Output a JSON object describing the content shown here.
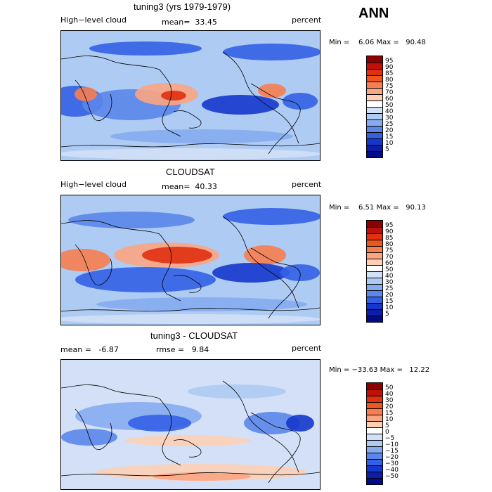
{
  "season": "ANN",
  "panels": [
    {
      "title": "tuning3 (yrs 1979-1979)",
      "left_label": "High−level cloud",
      "center_label": "mean=  33.45",
      "right_label": "percent",
      "minmax": "Min =    6.06 Max =   90.48",
      "colorbar": {
        "labels": [
          "95",
          "90",
          "85",
          "80",
          "75",
          "70",
          "60",
          "50",
          "40",
          "30",
          "25",
          "20",
          "15",
          "10",
          "5"
        ],
        "colors": [
          "#8b0000",
          "#c1100a",
          "#e03010",
          "#f0551e",
          "#f77e50",
          "#fba583",
          "#fdd0b6",
          "#ffffff",
          "#d3e0f7",
          "#aecbf3",
          "#86acef",
          "#5b86ea",
          "#3460e6",
          "#1637cc",
          "#0a1ea8",
          "#000a8a"
        ]
      }
    },
    {
      "title": "CLOUDSAT",
      "left_label": "High−level cloud",
      "center_label": "mean=  40.33",
      "right_label": "percent",
      "minmax": "Min =    6.51 Max =   90.13",
      "colorbar": {
        "labels": [
          "95",
          "90",
          "85",
          "80",
          "75",
          "70",
          "60",
          "50",
          "40",
          "30",
          "25",
          "20",
          "15",
          "10",
          "5"
        ],
        "colors": [
          "#8b0000",
          "#c1100a",
          "#e03010",
          "#f0551e",
          "#f77e50",
          "#fba583",
          "#fdd0b6",
          "#ffffff",
          "#d3e0f7",
          "#aecbf3",
          "#86acef",
          "#5b86ea",
          "#3460e6",
          "#1637cc",
          "#0a1ea8",
          "#000a8a"
        ]
      }
    },
    {
      "title": "tuning3 - CLOUDSAT",
      "left_label": "mean =   -6.87",
      "center_label": "rmse =   9.84",
      "right_label": "percent",
      "minmax": "Min = −33.63 Max =   12.22",
      "colorbar": {
        "labels": [
          "50",
          "40",
          "30",
          "20",
          "15",
          "10",
          "5",
          "0",
          "−5",
          "−10",
          "−15",
          "−20",
          "−30",
          "−40",
          "−50"
        ],
        "colors": [
          "#8b0000",
          "#c1100a",
          "#e03010",
          "#f0551e",
          "#f77e50",
          "#fba583",
          "#fdd0b6",
          "#ffffff",
          "#d3e0f7",
          "#aecbf3",
          "#86acef",
          "#5b86ea",
          "#3460e6",
          "#1637cc",
          "#0a1ea8",
          "#000a8a"
        ]
      }
    }
  ]
}
